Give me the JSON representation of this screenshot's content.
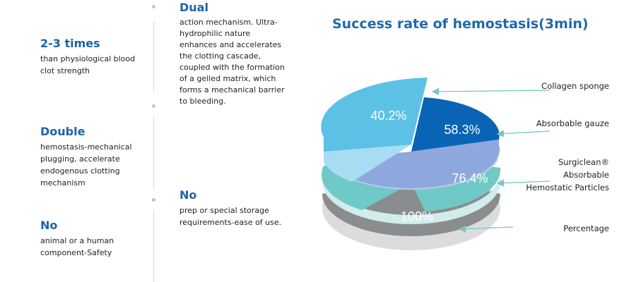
{
  "features": [
    {
      "head": "2-3 times",
      "body": "than physiological blood clot strength"
    },
    {
      "head": "Double",
      "body": "hemostasis-mechanical plugging, accelerate endogenous clotting mechanism"
    },
    {
      "head": "No",
      "body": "animal or a human component-Safety"
    },
    {
      "head": "Dual",
      "body": "action mechanism. Ultra-hydrophilic nature enhances and accelerates the clotting cascade, coupled with the formation of a gelled matrix, which forms a mechanical barrier to bleeding."
    },
    {
      "head": "No",
      "body": "prep or special storage requirements-ease of use."
    }
  ],
  "colors": {
    "layer_top": "#5dc1e6",
    "layer2": "#0a64b5",
    "layer3": "#6ec9c7",
    "layer4": "#8a8c8e",
    "arrow": "#75c7c3",
    "heading": "#1d63a8"
  },
  "chart_data": {
    "type": "pie",
    "title": "Success rate of hemostasis(3min)",
    "categories": [
      "Collagen sponge",
      "Absorbable gauze",
      "Surgiclean® Absorbable Hemostatic Particles",
      "Percentage"
    ],
    "values": [
      40.2,
      58.3,
      76.4,
      100
    ],
    "value_labels": [
      "40.2%",
      "58.3%",
      "76.4%",
      "100%"
    ]
  }
}
